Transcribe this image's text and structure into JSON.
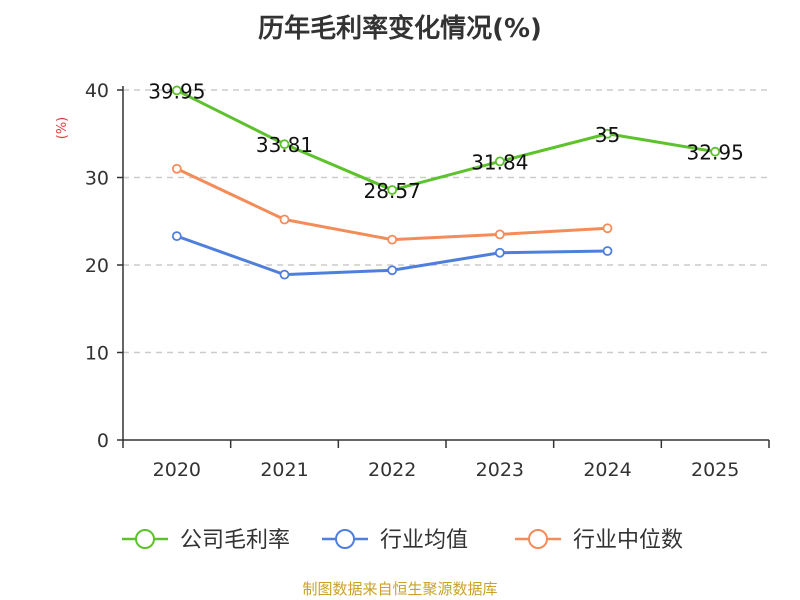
{
  "chart_data": {
    "type": "line",
    "title": "历年毛利率变化情况(%)",
    "ylabel": "(%)",
    "ylim": [
      0,
      40
    ],
    "yticks": [
      0,
      10,
      20,
      30,
      40
    ],
    "categories": [
      "2020",
      "2021",
      "2022",
      "2023",
      "2024",
      "2025"
    ],
    "grid": true,
    "legend_position": "bottom",
    "series": [
      {
        "name": "公司毛利率",
        "color": "#5ec22d",
        "values": [
          39.95,
          33.81,
          28.57,
          31.84,
          35,
          32.95
        ],
        "labels": [
          "39.95",
          "33.81",
          "28.57",
          "31.84",
          "35",
          "32.95"
        ]
      },
      {
        "name": "行业均值",
        "color": "#4f7fdc",
        "values": [
          23.3,
          18.9,
          19.4,
          21.4,
          21.6,
          null
        ]
      },
      {
        "name": "行业中位数",
        "color": "#f48c5a",
        "values": [
          31.0,
          25.2,
          22.9,
          23.5,
          24.2,
          null
        ]
      }
    ]
  },
  "source": "制图数据来自恒生聚源数据库"
}
